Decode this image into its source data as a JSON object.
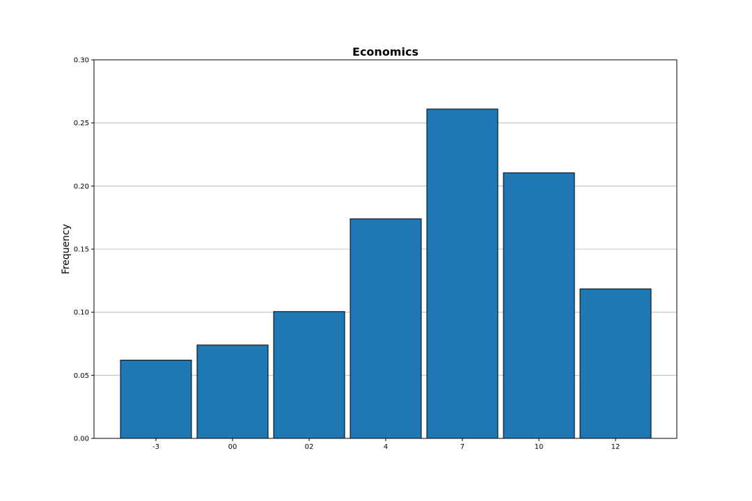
{
  "chart_data": {
    "type": "bar",
    "title": "Economics",
    "xlabel": "",
    "ylabel": "Frequency",
    "categories": [
      "-3",
      "00",
      "02",
      "4",
      "7",
      "10",
      "12"
    ],
    "values": [
      0.062,
      0.074,
      0.1005,
      0.174,
      0.261,
      0.2105,
      0.1185
    ],
    "ylim": [
      0,
      0.3
    ],
    "yticks": [
      "0.00",
      "0.05",
      "0.10",
      "0.15",
      "0.20",
      "0.25",
      "0.30"
    ],
    "ytick_values": [
      0,
      0.05,
      0.1,
      0.15,
      0.2,
      0.25,
      0.3
    ],
    "grid": "y",
    "bar_color": "#1f77b4",
    "edge_color": "#000000",
    "grid_color": "#b0b0b0"
  }
}
